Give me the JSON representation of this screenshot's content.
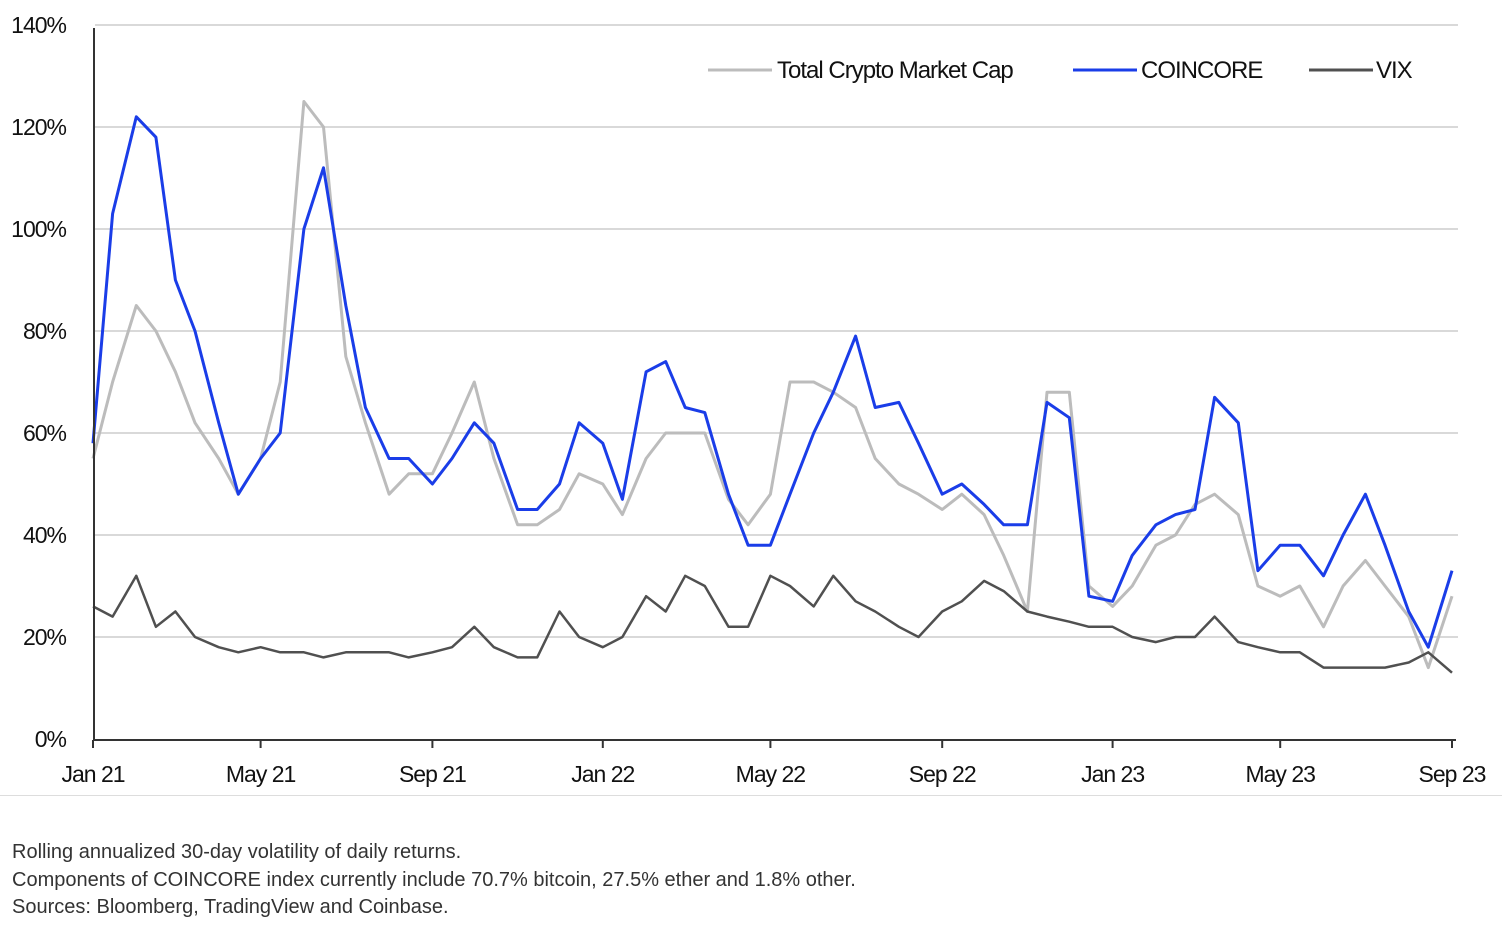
{
  "chart_data": {
    "type": "line",
    "title": "",
    "xlabel": "",
    "ylabel": "",
    "ylim": [
      0,
      140
    ],
    "yticks": [
      "0%",
      "20%",
      "40%",
      "60%",
      "80%",
      "100%",
      "120%",
      "140%"
    ],
    "ytick_values": [
      0,
      20,
      40,
      60,
      80,
      100,
      120,
      140
    ],
    "xrange": [
      "2021-01-01",
      "2023-09-01"
    ],
    "xticks": [
      "Jan 21",
      "May 21",
      "Sep 21",
      "Jan 22",
      "May 22",
      "Sep 22",
      "Jan 23",
      "May 23",
      "Sep 23"
    ],
    "xtick_dates": [
      "2021-01-01",
      "2021-05-01",
      "2021-09-01",
      "2022-01-01",
      "2022-05-01",
      "2022-09-01",
      "2023-01-01",
      "2023-05-01",
      "2023-09-01"
    ],
    "grid": "horizontal",
    "legend": "top-right",
    "x": [
      "2021-01-01",
      "2021-01-15",
      "2021-02-01",
      "2021-02-15",
      "2021-03-01",
      "2021-03-15",
      "2021-04-01",
      "2021-04-15",
      "2021-05-01",
      "2021-05-15",
      "2021-06-01",
      "2021-06-15",
      "2021-07-01",
      "2021-07-15",
      "2021-08-01",
      "2021-08-15",
      "2021-09-01",
      "2021-09-15",
      "2021-10-01",
      "2021-10-15",
      "2021-11-01",
      "2021-11-15",
      "2021-12-01",
      "2021-12-15",
      "2022-01-01",
      "2022-01-15",
      "2022-02-01",
      "2022-02-15",
      "2022-03-01",
      "2022-03-15",
      "2022-04-01",
      "2022-04-15",
      "2022-05-01",
      "2022-05-15",
      "2022-06-01",
      "2022-06-15",
      "2022-07-01",
      "2022-07-15",
      "2022-08-01",
      "2022-08-15",
      "2022-09-01",
      "2022-09-15",
      "2022-10-01",
      "2022-10-15",
      "2022-11-01",
      "2022-11-15",
      "2022-12-01",
      "2022-12-15",
      "2023-01-01",
      "2023-01-15",
      "2023-02-01",
      "2023-02-15",
      "2023-03-01",
      "2023-03-15",
      "2023-04-01",
      "2023-04-15",
      "2023-05-01",
      "2023-05-15",
      "2023-06-01",
      "2023-06-15",
      "2023-07-01",
      "2023-07-15",
      "2023-08-01",
      "2023-08-15",
      "2023-09-01"
    ],
    "series": [
      {
        "name": "Total Crypto Market Cap",
        "color": "#bcbcbc",
        "values": [
          55,
          70,
          85,
          80,
          72,
          62,
          55,
          48,
          55,
          70,
          125,
          120,
          75,
          62,
          48,
          52,
          52,
          60,
          70,
          55,
          42,
          42,
          45,
          52,
          50,
          44,
          55,
          60,
          60,
          60,
          47,
          42,
          48,
          70,
          70,
          68,
          65,
          55,
          50,
          48,
          45,
          48,
          44,
          36,
          25,
          68,
          68,
          30,
          26,
          30,
          38,
          40,
          46,
          48,
          44,
          30,
          28,
          30,
          22,
          30,
          35,
          30,
          24,
          14,
          28
        ]
      },
      {
        "name": "COINCORE",
        "color": "#1a3de8",
        "values": [
          58,
          103,
          122,
          118,
          90,
          80,
          62,
          48,
          55,
          60,
          100,
          112,
          85,
          65,
          55,
          55,
          50,
          55,
          62,
          58,
          45,
          45,
          50,
          62,
          58,
          47,
          72,
          74,
          65,
          64,
          48,
          38,
          38,
          48,
          60,
          68,
          79,
          65,
          66,
          58,
          48,
          50,
          46,
          42,
          42,
          66,
          63,
          28,
          27,
          36,
          42,
          44,
          45,
          67,
          62,
          33,
          38,
          38,
          32,
          40,
          48,
          38,
          25,
          18,
          33
        ]
      },
      {
        "name": "VIX",
        "color": "#505050",
        "values": [
          26,
          24,
          32,
          22,
          25,
          20,
          18,
          17,
          18,
          17,
          17,
          16,
          17,
          17,
          17,
          16,
          17,
          18,
          22,
          18,
          16,
          16,
          25,
          20,
          18,
          20,
          28,
          25,
          32,
          30,
          22,
          22,
          32,
          30,
          26,
          32,
          27,
          25,
          22,
          20,
          25,
          27,
          31,
          29,
          25,
          24,
          23,
          22,
          22,
          20,
          19,
          20,
          20,
          24,
          19,
          18,
          17,
          17,
          14,
          14,
          14,
          14,
          15,
          17,
          13
        ]
      }
    ]
  },
  "notes": [
    "Rolling annualized 30-day volatility of daily returns.",
    "Components of COINCORE index currently include 70.7% bitcoin, 27.5% ether and 1.8% other.",
    "Sources: Bloomberg, TradingView and Coinbase."
  ]
}
